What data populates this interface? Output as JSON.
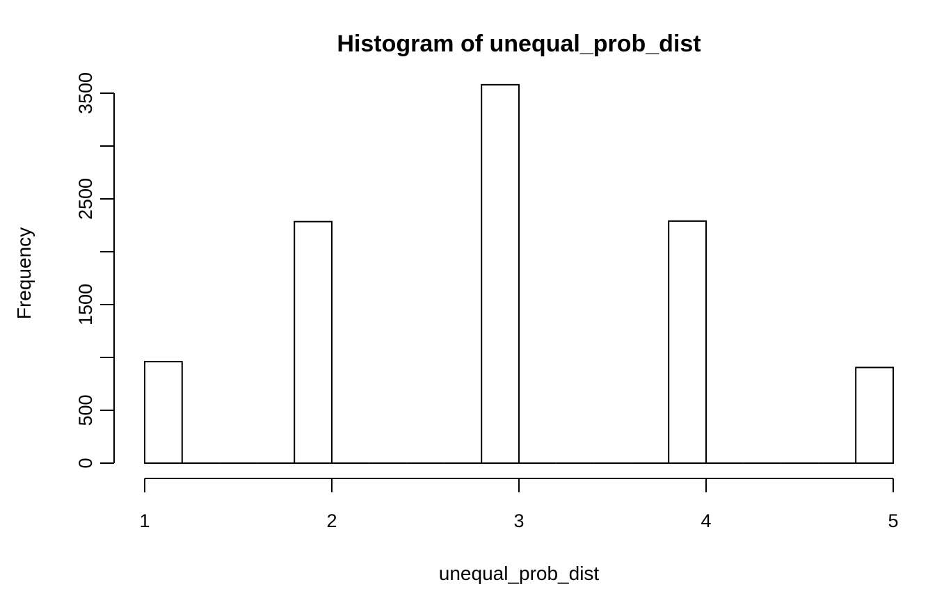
{
  "chart_data": {
    "type": "bar",
    "title": "Histogram of unequal_prob_dist",
    "xlabel": "unequal_prob_dist",
    "ylabel": "Frequency",
    "bins": [
      {
        "start": 1.0,
        "end": 1.2,
        "count": 960
      },
      {
        "start": 1.2,
        "end": 1.4,
        "count": 0
      },
      {
        "start": 1.4,
        "end": 1.6,
        "count": 0
      },
      {
        "start": 1.6,
        "end": 1.8,
        "count": 0
      },
      {
        "start": 1.8,
        "end": 2.0,
        "count": 2285
      },
      {
        "start": 2.0,
        "end": 2.2,
        "count": 0
      },
      {
        "start": 2.2,
        "end": 2.4,
        "count": 0
      },
      {
        "start": 2.4,
        "end": 2.6,
        "count": 0
      },
      {
        "start": 2.6,
        "end": 2.8,
        "count": 0
      },
      {
        "start": 2.8,
        "end": 3.0,
        "count": 3580
      },
      {
        "start": 3.0,
        "end": 3.2,
        "count": 0
      },
      {
        "start": 3.2,
        "end": 3.4,
        "count": 0
      },
      {
        "start": 3.4,
        "end": 3.6,
        "count": 0
      },
      {
        "start": 3.6,
        "end": 3.8,
        "count": 0
      },
      {
        "start": 3.8,
        "end": 4.0,
        "count": 2290
      },
      {
        "start": 4.0,
        "end": 4.2,
        "count": 0
      },
      {
        "start": 4.2,
        "end": 4.4,
        "count": 0
      },
      {
        "start": 4.4,
        "end": 4.6,
        "count": 0
      },
      {
        "start": 4.6,
        "end": 4.8,
        "count": 0
      },
      {
        "start": 4.8,
        "end": 5.0,
        "count": 905
      }
    ],
    "xlim": [
      1,
      5
    ],
    "ylim": [
      0,
      3500
    ],
    "xticks": [
      1,
      2,
      3,
      4,
      5
    ],
    "yticks": [
      0,
      500,
      1000,
      1500,
      2000,
      2500,
      3000,
      3500
    ],
    "ytick_labels": [
      "0",
      "500",
      "",
      "1500",
      "",
      "2500",
      "",
      "3500"
    ],
    "grid": false,
    "legend": "none"
  }
}
